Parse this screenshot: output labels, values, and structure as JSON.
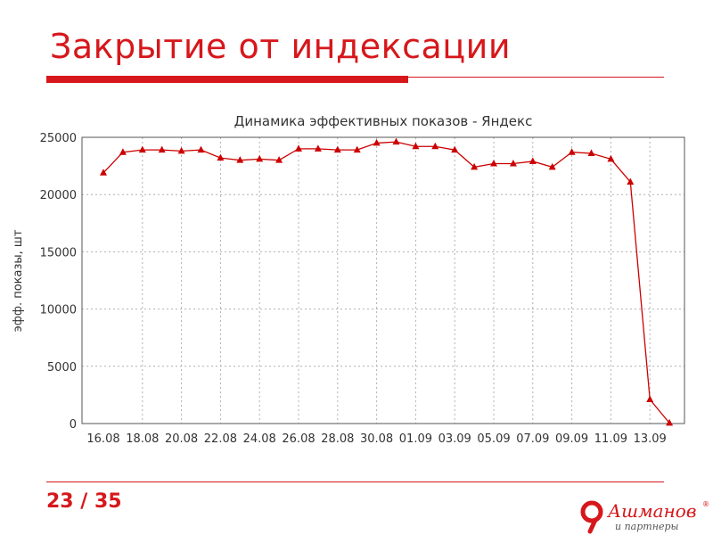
{
  "slide": {
    "title": "Закрытие от индексации",
    "number": "23 / 35"
  },
  "logo": {
    "name": "Ашманов",
    "registered": "®",
    "subtitle": "и партнеры"
  },
  "colors": {
    "accent": "#d6171b",
    "series": "#cc0000",
    "grid": "#b0b0b0"
  },
  "chart_data": {
    "type": "line",
    "title": "Динамика эффективных показов - Яндекс",
    "xlabel": "",
    "ylabel": "эфф. показы, шт",
    "ylim": [
      0,
      25000
    ],
    "yticks": [
      0,
      5000,
      10000,
      15000,
      20000,
      25000
    ],
    "grid": true,
    "marker": "triangle",
    "xtick_labels": [
      "16.08",
      "18.08",
      "20.08",
      "22.08",
      "24.08",
      "26.08",
      "28.08",
      "30.08",
      "01.09",
      "03.09",
      "05.09",
      "07.09",
      "09.09",
      "11.09",
      "13.09"
    ],
    "x": [
      "16.08",
      "17.08",
      "18.08",
      "19.08",
      "20.08",
      "21.08",
      "22.08",
      "23.08",
      "24.08",
      "25.08",
      "26.08",
      "27.08",
      "28.08",
      "29.08",
      "30.08",
      "31.08",
      "01.09",
      "02.09",
      "03.09",
      "04.09",
      "05.09",
      "06.09",
      "07.09",
      "08.09",
      "09.09",
      "10.09",
      "11.09",
      "12.09",
      "13.09",
      "14.09"
    ],
    "series": [
      {
        "values": [
          21900,
          23700,
          23900,
          23900,
          23800,
          23900,
          23200,
          23000,
          23100,
          23000,
          24000,
          24000,
          23900,
          23900,
          24500,
          24600,
          24200,
          24200,
          23900,
          22400,
          22700,
          22700,
          22900,
          22400,
          23700,
          23600,
          23100,
          21100,
          2100,
          50
        ]
      }
    ]
  }
}
